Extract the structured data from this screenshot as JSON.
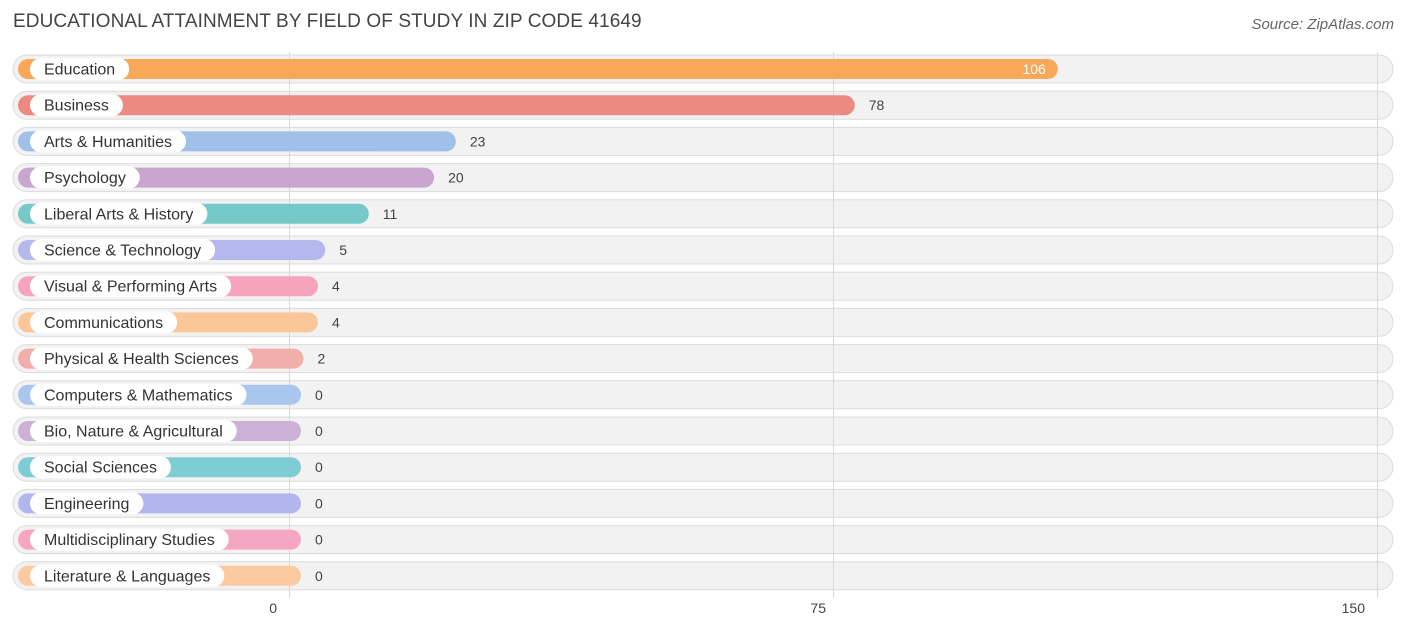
{
  "chart_data": {
    "type": "bar",
    "orientation": "horizontal",
    "title": "EDUCATIONAL ATTAINMENT BY FIELD OF STUDY IN ZIP CODE 41649",
    "source": "Source: ZipAtlas.com",
    "categories": [
      "Education",
      "Business",
      "Arts & Humanities",
      "Psychology",
      "Liberal Arts & History",
      "Science & Technology",
      "Visual & Performing Arts",
      "Communications",
      "Physical & Health Sciences",
      "Computers & Mathematics",
      "Bio, Nature & Agricultural",
      "Social Sciences",
      "Engineering",
      "Multidisciplinary Studies",
      "Literature & Languages"
    ],
    "values": [
      106,
      78,
      23,
      20,
      11,
      5,
      4,
      4,
      2,
      0,
      0,
      0,
      0,
      0,
      0
    ],
    "value_labels": [
      "106",
      "78",
      "23",
      "20",
      "11",
      "5",
      "4",
      "4",
      "2",
      "0",
      "0",
      "0",
      "0",
      "0",
      "0"
    ],
    "colors": [
      "#f9a85a",
      "#ec8a82",
      "#9fc0e8",
      "#c8a6cf",
      "#76c9c9",
      "#b4b8ec",
      "#f6a3bd",
      "#fbc799",
      "#f2aeaa",
      "#a9c7ee",
      "#ccb0d6",
      "#7ecdd4",
      "#b3b6ee",
      "#f5a6c2",
      "#fbcb9f"
    ],
    "xlim": [
      0,
      150
    ],
    "ticks": [
      0,
      75,
      150
    ],
    "tick_labels": [
      "0",
      "75",
      "150"
    ],
    "grid": true,
    "legend": "none"
  }
}
